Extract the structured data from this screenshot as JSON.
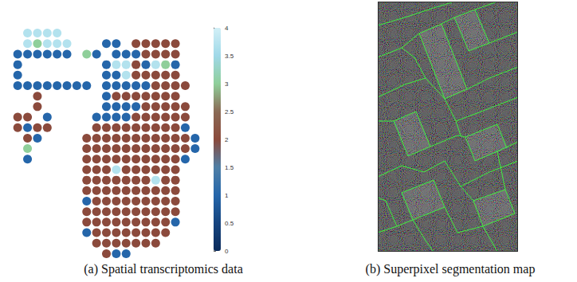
{
  "chart_data": {
    "type": "scatter",
    "caption": "(a) Spatial transcriptomics data",
    "tick_labels": false,
    "cells": [
      [
        null,
        3.7,
        3.7,
        3.7,
        3.7,
        null,
        null,
        null,
        null,
        null,
        null,
        null,
        null,
        null,
        null,
        null,
        null,
        null,
        null
      ],
      [
        null,
        3.7,
        3,
        3.7,
        3.7,
        3.7,
        null,
        null,
        null,
        1,
        1,
        null,
        2,
        2,
        2,
        2,
        2,
        null,
        null
      ],
      [
        1,
        1,
        1,
        1,
        1,
        1,
        null,
        3,
        1,
        null,
        1,
        1,
        1,
        2,
        2,
        2,
        2,
        null,
        null
      ],
      [
        1,
        null,
        null,
        null,
        null,
        null,
        null,
        null,
        null,
        1,
        3.7,
        3.7,
        2,
        1,
        3.7,
        3,
        1,
        null,
        null
      ],
      [
        1,
        null,
        null,
        null,
        null,
        null,
        null,
        null,
        null,
        1,
        1,
        3.7,
        2,
        2,
        2,
        2,
        2,
        null,
        null
      ],
      [
        1,
        1,
        1,
        1,
        1,
        1,
        1,
        1,
        null,
        1,
        1,
        1,
        1,
        1,
        2,
        2,
        2,
        2,
        null
      ],
      [
        null,
        null,
        2,
        null,
        null,
        null,
        null,
        null,
        null,
        1,
        2,
        2,
        2,
        2,
        2,
        2,
        2,
        null,
        null
      ],
      [
        null,
        null,
        2,
        null,
        null,
        null,
        null,
        null,
        null,
        1,
        1,
        1,
        1,
        2,
        2,
        2,
        2,
        2,
        null
      ],
      [
        2,
        2,
        null,
        1,
        null,
        null,
        null,
        null,
        1,
        1,
        1,
        1,
        2,
        2,
        2,
        2,
        2,
        2,
        null
      ],
      [
        2,
        1,
        2,
        2,
        null,
        null,
        null,
        null,
        2,
        2,
        2,
        2,
        2,
        2,
        2,
        2,
        2,
        1,
        null
      ],
      [
        null,
        2,
        1,
        null,
        null,
        null,
        null,
        2,
        2,
        2,
        2,
        2,
        2,
        2,
        2,
        2,
        2,
        2,
        1
      ],
      [
        null,
        3,
        null,
        null,
        null,
        null,
        null,
        2,
        2,
        2,
        2,
        2,
        2,
        2,
        2,
        2,
        2,
        2,
        1
      ],
      [
        null,
        1,
        null,
        null,
        null,
        null,
        null,
        2,
        2,
        2,
        2,
        2,
        2,
        2,
        2,
        2,
        2,
        1,
        null
      ],
      [
        null,
        null,
        null,
        null,
        null,
        null,
        null,
        2,
        2,
        2,
        3.7,
        2,
        2,
        2,
        2,
        2,
        2,
        null,
        null
      ],
      [
        null,
        null,
        null,
        null,
        null,
        null,
        null,
        2,
        2,
        2,
        2,
        2,
        2,
        2,
        3.7,
        2,
        2,
        null,
        null
      ],
      [
        null,
        null,
        null,
        null,
        null,
        null,
        null,
        2,
        2,
        2,
        2,
        2,
        2,
        2,
        2,
        2,
        2,
        null,
        null
      ],
      [
        null,
        null,
        null,
        null,
        null,
        null,
        null,
        1,
        2,
        2,
        2,
        2,
        2,
        2,
        2,
        2,
        2,
        null,
        null
      ],
      [
        null,
        null,
        null,
        null,
        null,
        null,
        null,
        2,
        2,
        2,
        2,
        2,
        2,
        2,
        2,
        2,
        2,
        null,
        null
      ],
      [
        null,
        null,
        null,
        null,
        null,
        null,
        null,
        2,
        2,
        2,
        2,
        2,
        2,
        2,
        2,
        2,
        1,
        null,
        null
      ],
      [
        null,
        null,
        null,
        null,
        null,
        null,
        null,
        1,
        2,
        2,
        2,
        2,
        2,
        2,
        2,
        2,
        null,
        null,
        null
      ],
      [
        null,
        null,
        null,
        null,
        null,
        null,
        null,
        null,
        2,
        2,
        2,
        2,
        2,
        2,
        2,
        null,
        null,
        null,
        null
      ],
      [
        null,
        null,
        null,
        null,
        null,
        null,
        null,
        null,
        null,
        2,
        1,
        1,
        null,
        null,
        null,
        null,
        null,
        null,
        null
      ]
    ],
    "colorbar": {
      "range": [
        0,
        4
      ],
      "ticks": [
        0,
        0.5,
        1,
        1.5,
        2,
        2.5,
        3,
        3.5,
        4
      ]
    }
  },
  "image": {
    "caption": "(b) Superpixel segmentation map"
  }
}
